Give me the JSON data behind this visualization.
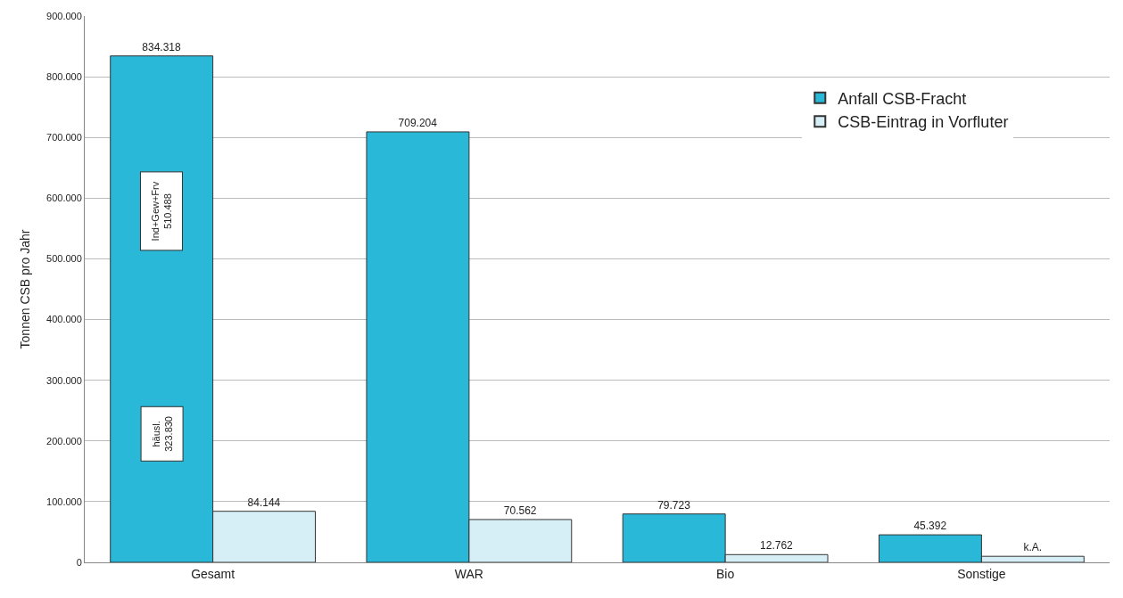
{
  "chart_data": {
    "type": "bar",
    "ylabel": "Tonnen CSB pro Jahr",
    "categories": [
      "Gesamt",
      "WAR",
      "Bio",
      "Sonstige"
    ],
    "series": [
      {
        "name": "Anfall CSB-Fracht",
        "color": "#29b8d8",
        "values": [
          834318,
          709204,
          79723,
          45392
        ],
        "value_labels": [
          "834.318",
          "709.204",
          "79.723",
          "45.392"
        ]
      },
      {
        "name": "CSB-Eintrag in Vorfluter",
        "color": "#d6eef6",
        "values": [
          84144,
          70562,
          12762,
          10000
        ],
        "value_labels": [
          "84.144",
          "70.562",
          "12.762",
          "k.A."
        ]
      }
    ],
    "ylim": [
      0,
      900000
    ],
    "yticks": [
      0,
      {
        "value": 100000,
        "label": "100.000"
      },
      {
        "value": 200000,
        "label": "200.000"
      },
      {
        "value": 300000,
        "label": "300.000"
      },
      {
        "value": 400000,
        "label": "400.000"
      },
      {
        "value": 500000,
        "label": "500.000"
      },
      {
        "value": 600000,
        "label": "600.000"
      },
      {
        "value": 700000,
        "label": "700.000"
      },
      {
        "value": 800000,
        "label": "800.000"
      },
      {
        "value": 900000,
        "label": "900.000"
      }
    ],
    "annotations": [
      "Ind+Gew+Frv\n510.488",
      "häusl.\n323.830"
    ],
    "grid": "y",
    "legend": "top right"
  }
}
